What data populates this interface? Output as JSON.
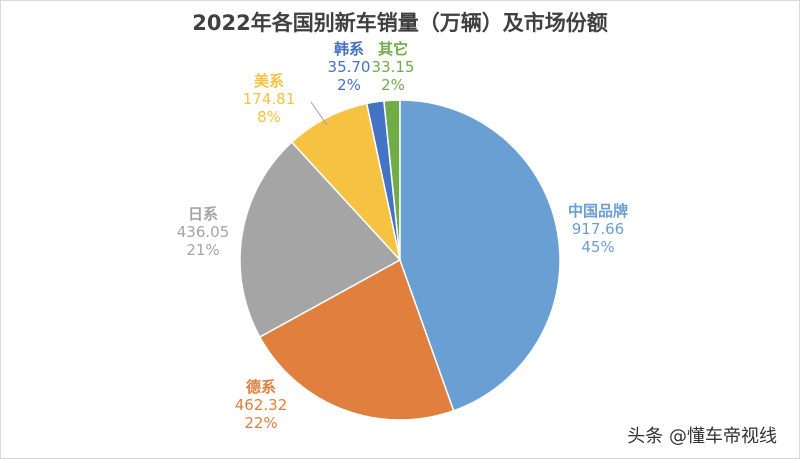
{
  "chart_data": {
    "type": "pie",
    "title": "2022年各国别新车销量（万辆）及市场份额",
    "slices": [
      {
        "label": "中国品牌",
        "value": 917.66,
        "value_label": "917.66",
        "pct": "45%",
        "color": "#6a9fd4"
      },
      {
        "label": "德系",
        "value": 462.32,
        "value_label": "462.32",
        "pct": "22%",
        "color": "#e07f3e"
      },
      {
        "label": "日系",
        "value": 436.05,
        "value_label": "436.05",
        "pct": "21%",
        "color": "#a5a5a5"
      },
      {
        "label": "美系",
        "value": 174.81,
        "value_label": "174.81",
        "pct": "8%",
        "color": "#f5c242"
      },
      {
        "label": "韩系",
        "value": 35.7,
        "value_label": "35.70",
        "pct": "2%",
        "color": "#4472c4"
      },
      {
        "label": "其它",
        "value": 33.15,
        "value_label": "33.15",
        "pct": "2%",
        "color": "#70ad47"
      }
    ],
    "start": "top",
    "direction": "clockwise",
    "legend": "none"
  },
  "watermark": "头条 @懂车帝视线"
}
